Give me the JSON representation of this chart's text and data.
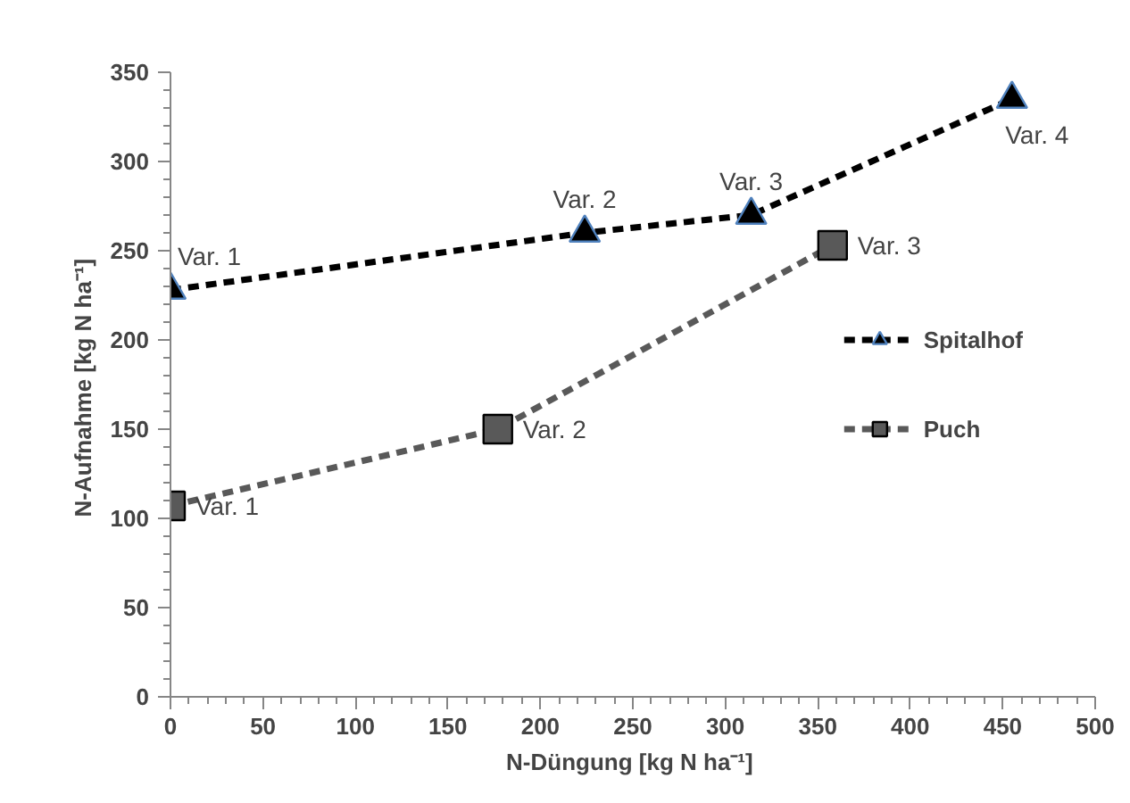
{
  "chart_data": {
    "type": "line",
    "xlabel": "N-Düngung  [kg N ha⁻¹]",
    "ylabel": "N-Aufnahme  [kg N ha⁻¹]",
    "xlim": [
      0,
      500
    ],
    "xticks": [
      0,
      50,
      100,
      150,
      200,
      250,
      300,
      350,
      400,
      450,
      500
    ],
    "ylim": [
      0,
      350
    ],
    "yticks": [
      0,
      50,
      100,
      150,
      200,
      250,
      300,
      350
    ],
    "grid": false,
    "legend": "right",
    "line_style": "dashed",
    "series": [
      {
        "name": "Spitalhof",
        "color": "#000000",
        "marker": "triangle",
        "x": [
          0,
          224,
          314,
          455
        ],
        "values": [
          228,
          260,
          270,
          335
        ]
      },
      {
        "name": "Puch",
        "color": "#595959",
        "marker": "square",
        "x": [
          0,
          177,
          358
        ],
        "values": [
          107,
          150,
          253
        ]
      }
    ],
    "annotations": [
      {
        "text": "Var. 1",
        "x": 0,
        "y": 228
      },
      {
        "text": "Var. 2",
        "x": 224,
        "y": 260
      },
      {
        "text": "Var. 3",
        "x": 314,
        "y": 270
      },
      {
        "text": "Var. 4",
        "x": 455,
        "y": 335
      },
      {
        "text": "Var. 1",
        "x": 0,
        "y": 107
      },
      {
        "text": "Var. 2",
        "x": 177,
        "y": 150
      },
      {
        "text": "Var. 3",
        "x": 358,
        "y": 253
      }
    ]
  }
}
